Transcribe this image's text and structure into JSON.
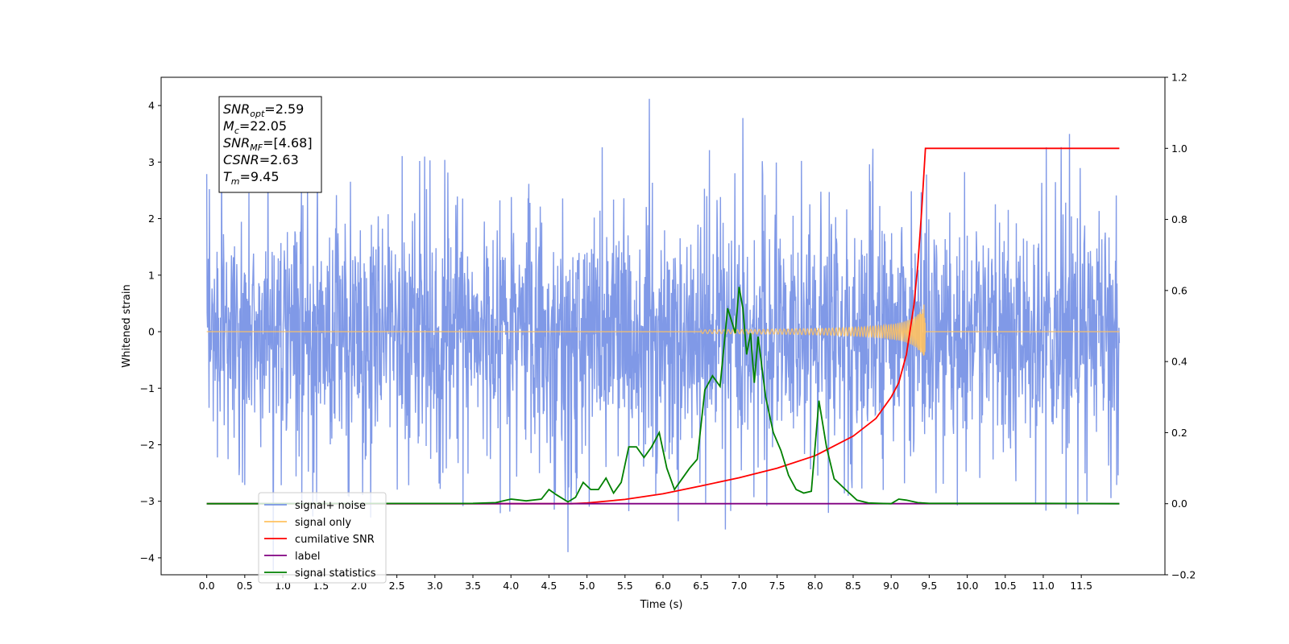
{
  "chart_data": {
    "type": "line",
    "xlabel": "Time (s)",
    "ylabel": "Whitened strain",
    "xlim": [
      -0.6,
      12.6
    ],
    "ylim": [
      -4.3,
      4.5
    ],
    "y2lim": [
      -0.2,
      1.2
    ],
    "x_ticks": [
      "0.0",
      "0.5",
      "1.0",
      "1.5",
      "2.0",
      "2.5",
      "3.0",
      "3.5",
      "4.0",
      "4.5",
      "5.0",
      "5.5",
      "6.0",
      "6.5",
      "7.0",
      "7.5",
      "8.0",
      "8.5",
      "9.0",
      "9.5",
      "10.0",
      "10.5",
      "11.0",
      "11.5"
    ],
    "y_ticks": [
      "4",
      "3",
      "2",
      "1",
      "0",
      "−1",
      "−2",
      "−3",
      "−4"
    ],
    "y2_ticks": [
      "1.2",
      "1.0",
      "0.8",
      "0.6",
      "0.4",
      "0.2",
      "0.0",
      "−0.2"
    ],
    "legend_position": "lower-left",
    "annotation": {
      "lines": [
        {
          "base": "SNR",
          "sub": "opt",
          "value": "=2.59"
        },
        {
          "base": "M",
          "sub": "c",
          "value": "=22.05"
        },
        {
          "base": "SNR",
          "sub": "MF",
          "value": "=[4.68]"
        },
        {
          "base": "CSNR",
          "sub": "",
          "value": "=2.63"
        },
        {
          "base": "T",
          "sub": "m",
          "value": "=9.45"
        }
      ]
    },
    "series": [
      {
        "name": "signal+ noise",
        "color": "#7994e6",
        "axis": "left",
        "kind": "noise",
        "x_range": [
          0.0,
          12.0
        ],
        "typical_range": [
          -2.5,
          3.0
        ],
        "extremes": [
          {
            "x": 5.82,
            "y": 4.12
          },
          {
            "x": 4.75,
            "y": -3.9
          },
          {
            "x": 6.82,
            "y": -3.5
          },
          {
            "x": 7.05,
            "y": 3.78
          }
        ]
      },
      {
        "name": "signal only",
        "color": "#ffc261",
        "axis": "left",
        "kind": "chirp",
        "x_range": [
          0.0,
          9.45
        ],
        "peak_amplitude": 0.6
      },
      {
        "name": "cumilative SNR",
        "color": "#ff0000",
        "axis": "right",
        "x": [
          0.0,
          4.8,
          5.0,
          5.5,
          6.0,
          6.5,
          7.0,
          7.5,
          8.0,
          8.5,
          8.8,
          9.0,
          9.1,
          9.2,
          9.3,
          9.35,
          9.4,
          9.45,
          12.0
        ],
        "y": [
          0.0,
          0.0,
          0.002,
          0.012,
          0.028,
          0.05,
          0.073,
          0.1,
          0.135,
          0.19,
          0.24,
          0.3,
          0.34,
          0.42,
          0.56,
          0.67,
          0.82,
          1.0,
          1.0
        ]
      },
      {
        "name": "label",
        "color": "#800080",
        "axis": "right",
        "x": [
          0.0,
          12.0
        ],
        "y": [
          0.0,
          0.0
        ]
      },
      {
        "name": "signal statistics",
        "color": "#008000",
        "axis": "right",
        "x": [
          0.0,
          3.5,
          3.8,
          4.0,
          4.2,
          4.4,
          4.5,
          4.6,
          4.75,
          4.85,
          4.95,
          5.05,
          5.15,
          5.25,
          5.35,
          5.45,
          5.55,
          5.65,
          5.75,
          5.85,
          5.95,
          6.05,
          6.15,
          6.25,
          6.35,
          6.45,
          6.55,
          6.65,
          6.75,
          6.85,
          6.95,
          7.0,
          7.05,
          7.1,
          7.15,
          7.2,
          7.25,
          7.35,
          7.45,
          7.55,
          7.65,
          7.75,
          7.85,
          7.95,
          8.05,
          8.15,
          8.25,
          8.4,
          8.55,
          8.7,
          8.85,
          9.0,
          9.1,
          9.2,
          9.35,
          9.5,
          10.0,
          10.5,
          11.0,
          12.0
        ],
        "y": [
          0.0,
          0.001,
          0.003,
          0.013,
          0.008,
          0.013,
          0.04,
          0.025,
          0.005,
          0.018,
          0.06,
          0.04,
          0.04,
          0.072,
          0.03,
          0.06,
          0.16,
          0.16,
          0.13,
          0.16,
          0.2,
          0.1,
          0.04,
          0.07,
          0.1,
          0.125,
          0.32,
          0.36,
          0.33,
          0.55,
          0.48,
          0.61,
          0.55,
          0.42,
          0.48,
          0.34,
          0.47,
          0.3,
          0.2,
          0.15,
          0.08,
          0.04,
          0.03,
          0.035,
          0.29,
          0.16,
          0.07,
          0.04,
          0.01,
          0.002,
          0.001,
          0.0,
          0.013,
          0.01,
          0.003,
          0.001,
          0.001,
          0.001,
          0.001,
          0.0
        ]
      }
    ]
  }
}
